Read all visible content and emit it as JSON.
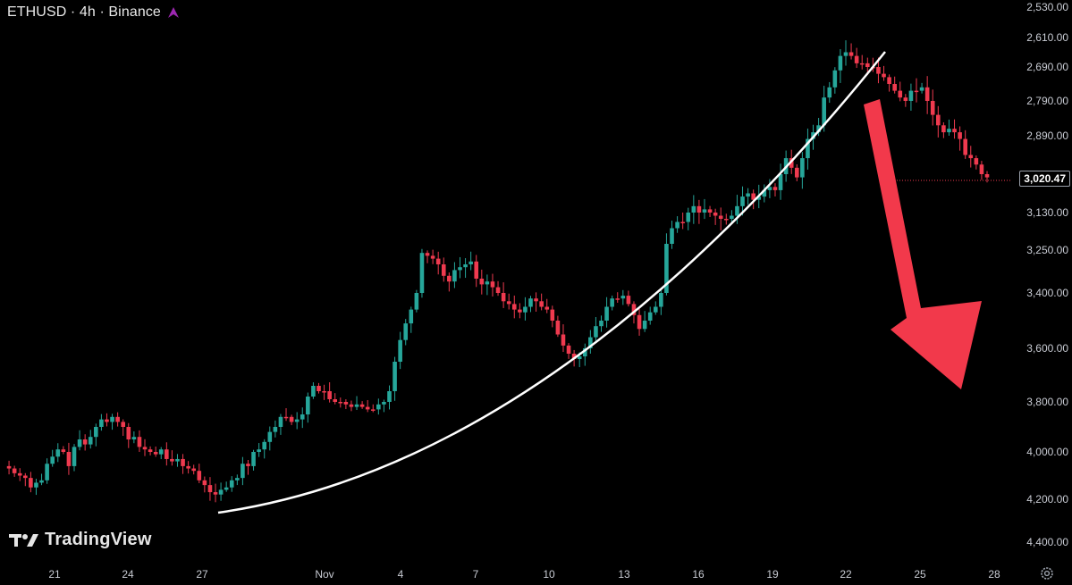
{
  "header": {
    "symbol_label": "ETHUSD · 4h · Binance",
    "icon": "purple-star-icon"
  },
  "branding": {
    "logo_text": "TradingView",
    "logo_icon": "tradingview-logo-icon"
  },
  "footer": {
    "settings_icon": "gear-icon"
  },
  "colors": {
    "background": "#000000",
    "bull": "#26a69a",
    "bear": "#ef3a4f",
    "curve": "#ffffff",
    "arrow": "#f2394b",
    "accent_icon": "#9c27b0"
  },
  "chart_data": {
    "type": "candlestick",
    "symbol": "ETHUSD",
    "interval": "4h",
    "exchange": "Binance",
    "y_axis": {
      "inverted": true,
      "tick_labels": [
        "2,530.00",
        "2,610.00",
        "2,690.00",
        "2,790.00",
        "2,890.00",
        "3,130.00",
        "3,250.00",
        "3,400.00",
        "3,600.00",
        "3,800.00",
        "4,000.00",
        "4,200.00",
        "4,400.00"
      ],
      "last_price_label": "3,020.47"
    },
    "x_axis": {
      "tick_labels": [
        "21",
        "24",
        "27",
        "Nov",
        "4",
        "7",
        "10",
        "13",
        "16",
        "19",
        "22",
        "25",
        "28"
      ]
    },
    "series_trend": {
      "values": [
        4060,
        4070,
        4090,
        4100,
        4110,
        4150,
        4130,
        4120,
        4050,
        4020,
        3990,
        4000,
        4060,
        3980,
        3950,
        3970,
        3940,
        3900,
        3870,
        3880,
        3860,
        3880,
        3900,
        3950,
        3940,
        3980,
        3990,
        4000,
        4010,
        3990,
        4030,
        4040,
        4030,
        4060,
        4070,
        4080,
        4120,
        4140,
        4170,
        4180,
        4160,
        4150,
        4120,
        4110,
        4050,
        4060,
        4000,
        3990,
        3960,
        3920,
        3900,
        3860,
        3860,
        3880,
        3870,
        3850,
        3780,
        3740,
        3760,
        3760,
        3790,
        3800,
        3800,
        3810,
        3820,
        3810,
        3820,
        3830,
        3830,
        3810,
        3800,
        3760,
        3650,
        3570,
        3510,
        3460,
        3400,
        3260,
        3270,
        3280,
        3300,
        3340,
        3360,
        3320,
        3310,
        3300,
        3290,
        3350,
        3370,
        3360,
        3380,
        3400,
        3430,
        3440,
        3460,
        3470,
        3450,
        3420,
        3430,
        3450,
        3460,
        3500,
        3550,
        3590,
        3620,
        3640,
        3630,
        3600,
        3560,
        3520,
        3500,
        3450,
        3420,
        3420,
        3410,
        3440,
        3480,
        3530,
        3500,
        3470,
        3450,
        3400,
        3230,
        3180,
        3160,
        3160,
        3130,
        3110,
        3130,
        3120,
        3130,
        3140,
        3150,
        3150,
        3140,
        3110,
        3080,
        3070,
        3090,
        3080,
        3060,
        3050,
        3060,
        3010,
        2960,
        2990,
        3020,
        2960,
        2900,
        2880,
        2860,
        2780,
        2750,
        2700,
        2660,
        2650,
        2660,
        2680,
        2680,
        2690,
        2690,
        2710,
        2720,
        2740,
        2760,
        2780,
        2790,
        2760,
        2760,
        2750,
        2790,
        2830,
        2860,
        2880,
        2870,
        2880,
        2900,
        2950,
        2960,
        2980,
        3010,
        3020
      ]
    },
    "annotations": [
      {
        "type": "curve",
        "description": "parabolic support curve"
      },
      {
        "type": "arrow",
        "direction": "down"
      }
    ]
  }
}
